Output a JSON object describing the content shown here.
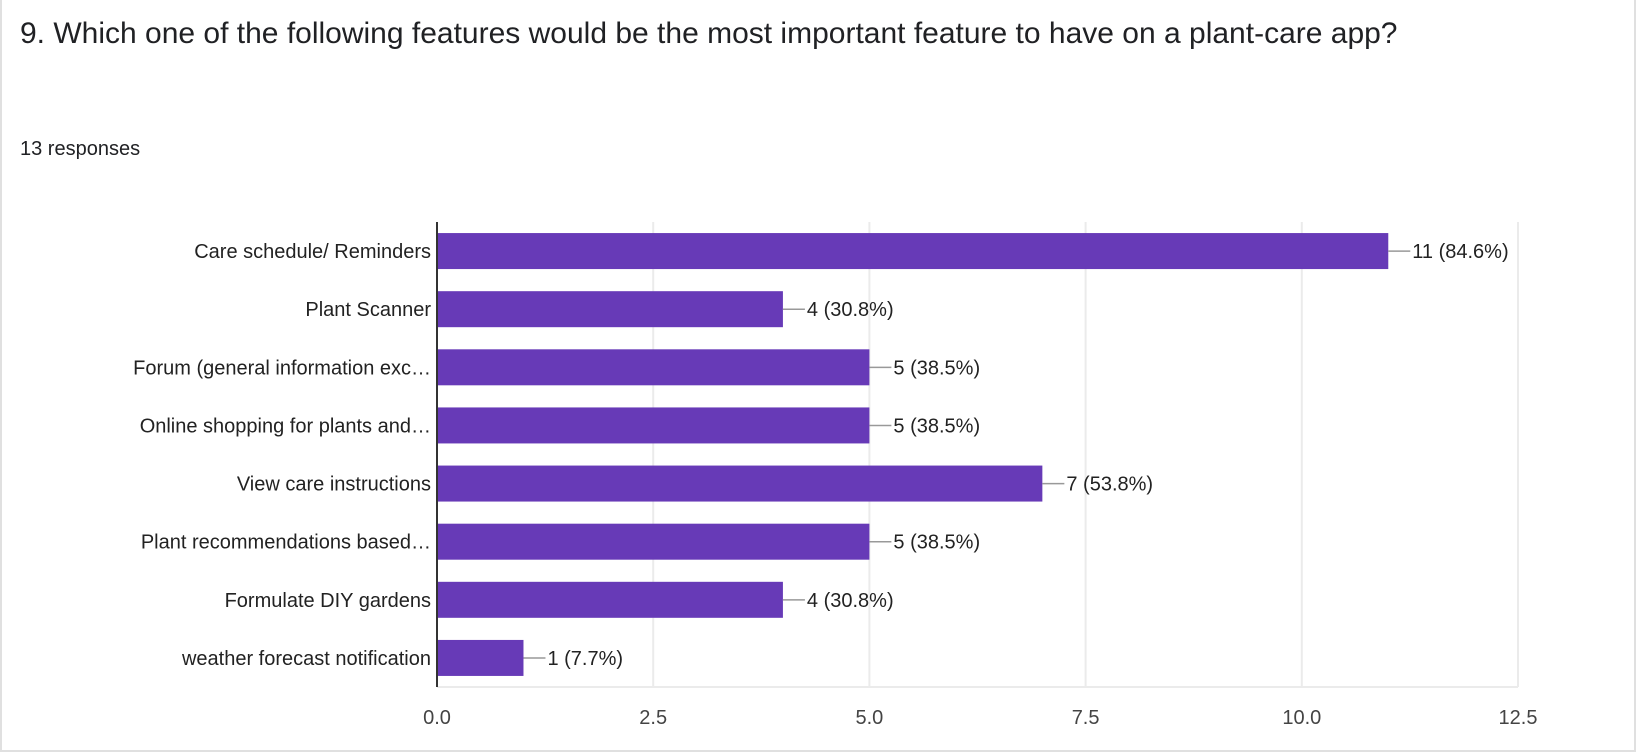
{
  "question": {
    "title": "9. Which one of the following features would be the most important feature to have on a plant-care app?",
    "responses": "13 responses"
  },
  "chart_data": {
    "type": "bar",
    "orientation": "horizontal",
    "categories": [
      "Care schedule/ Reminders",
      "Plant Scanner",
      "Forum (general information exc…",
      "Online shopping for plants and…",
      "View care instructions",
      "Plant recommendations based…",
      "Formulate DIY gardens",
      "weather forecast notification"
    ],
    "values": [
      11,
      4,
      5,
      5,
      7,
      5,
      4,
      1
    ],
    "data_labels": [
      "11 (84.6%)",
      "4 (30.8%)",
      "5 (38.5%)",
      "5 (38.5%)",
      "7 (53.8%)",
      "5 (38.5%)",
      "4 (30.8%)",
      "1 (7.7%)"
    ],
    "xlim": [
      0,
      12.5
    ],
    "xticks": [
      "0.0",
      "2.5",
      "5.0",
      "7.5",
      "10.0",
      "12.5"
    ],
    "grid": true,
    "bar_color": "#673ab7"
  }
}
